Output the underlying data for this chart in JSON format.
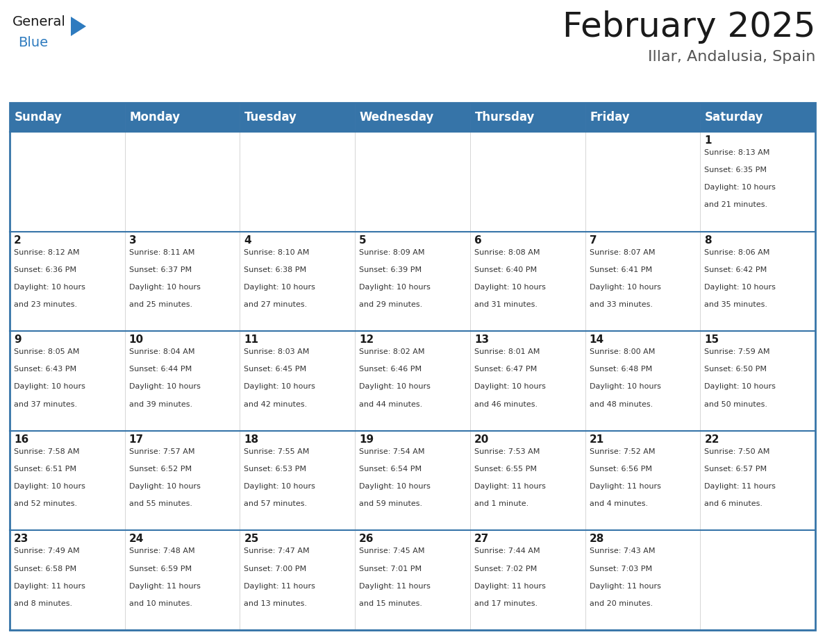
{
  "title": "February 2025",
  "subtitle": "Illar, Andalusia, Spain",
  "header_bg": "#3674a8",
  "header_text": "#ffffff",
  "cell_bg_white": "#ffffff",
  "border_color": "#3674a8",
  "grid_line_color": "#aaaaaa",
  "day_headers": [
    "Sunday",
    "Monday",
    "Tuesday",
    "Wednesday",
    "Thursday",
    "Friday",
    "Saturday"
  ],
  "weeks": [
    [
      {
        "day": "",
        "info": ""
      },
      {
        "day": "",
        "info": ""
      },
      {
        "day": "",
        "info": ""
      },
      {
        "day": "",
        "info": ""
      },
      {
        "day": "",
        "info": ""
      },
      {
        "day": "",
        "info": ""
      },
      {
        "day": "1",
        "info": "Sunrise: 8:13 AM\nSunset: 6:35 PM\nDaylight: 10 hours\nand 21 minutes."
      }
    ],
    [
      {
        "day": "2",
        "info": "Sunrise: 8:12 AM\nSunset: 6:36 PM\nDaylight: 10 hours\nand 23 minutes."
      },
      {
        "day": "3",
        "info": "Sunrise: 8:11 AM\nSunset: 6:37 PM\nDaylight: 10 hours\nand 25 minutes."
      },
      {
        "day": "4",
        "info": "Sunrise: 8:10 AM\nSunset: 6:38 PM\nDaylight: 10 hours\nand 27 minutes."
      },
      {
        "day": "5",
        "info": "Sunrise: 8:09 AM\nSunset: 6:39 PM\nDaylight: 10 hours\nand 29 minutes."
      },
      {
        "day": "6",
        "info": "Sunrise: 8:08 AM\nSunset: 6:40 PM\nDaylight: 10 hours\nand 31 minutes."
      },
      {
        "day": "7",
        "info": "Sunrise: 8:07 AM\nSunset: 6:41 PM\nDaylight: 10 hours\nand 33 minutes."
      },
      {
        "day": "8",
        "info": "Sunrise: 8:06 AM\nSunset: 6:42 PM\nDaylight: 10 hours\nand 35 minutes."
      }
    ],
    [
      {
        "day": "9",
        "info": "Sunrise: 8:05 AM\nSunset: 6:43 PM\nDaylight: 10 hours\nand 37 minutes."
      },
      {
        "day": "10",
        "info": "Sunrise: 8:04 AM\nSunset: 6:44 PM\nDaylight: 10 hours\nand 39 minutes."
      },
      {
        "day": "11",
        "info": "Sunrise: 8:03 AM\nSunset: 6:45 PM\nDaylight: 10 hours\nand 42 minutes."
      },
      {
        "day": "12",
        "info": "Sunrise: 8:02 AM\nSunset: 6:46 PM\nDaylight: 10 hours\nand 44 minutes."
      },
      {
        "day": "13",
        "info": "Sunrise: 8:01 AM\nSunset: 6:47 PM\nDaylight: 10 hours\nand 46 minutes."
      },
      {
        "day": "14",
        "info": "Sunrise: 8:00 AM\nSunset: 6:48 PM\nDaylight: 10 hours\nand 48 minutes."
      },
      {
        "day": "15",
        "info": "Sunrise: 7:59 AM\nSunset: 6:50 PM\nDaylight: 10 hours\nand 50 minutes."
      }
    ],
    [
      {
        "day": "16",
        "info": "Sunrise: 7:58 AM\nSunset: 6:51 PM\nDaylight: 10 hours\nand 52 minutes."
      },
      {
        "day": "17",
        "info": "Sunrise: 7:57 AM\nSunset: 6:52 PM\nDaylight: 10 hours\nand 55 minutes."
      },
      {
        "day": "18",
        "info": "Sunrise: 7:55 AM\nSunset: 6:53 PM\nDaylight: 10 hours\nand 57 minutes."
      },
      {
        "day": "19",
        "info": "Sunrise: 7:54 AM\nSunset: 6:54 PM\nDaylight: 10 hours\nand 59 minutes."
      },
      {
        "day": "20",
        "info": "Sunrise: 7:53 AM\nSunset: 6:55 PM\nDaylight: 11 hours\nand 1 minute."
      },
      {
        "day": "21",
        "info": "Sunrise: 7:52 AM\nSunset: 6:56 PM\nDaylight: 11 hours\nand 4 minutes."
      },
      {
        "day": "22",
        "info": "Sunrise: 7:50 AM\nSunset: 6:57 PM\nDaylight: 11 hours\nand 6 minutes."
      }
    ],
    [
      {
        "day": "23",
        "info": "Sunrise: 7:49 AM\nSunset: 6:58 PM\nDaylight: 11 hours\nand 8 minutes."
      },
      {
        "day": "24",
        "info": "Sunrise: 7:48 AM\nSunset: 6:59 PM\nDaylight: 11 hours\nand 10 minutes."
      },
      {
        "day": "25",
        "info": "Sunrise: 7:47 AM\nSunset: 7:00 PM\nDaylight: 11 hours\nand 13 minutes."
      },
      {
        "day": "26",
        "info": "Sunrise: 7:45 AM\nSunset: 7:01 PM\nDaylight: 11 hours\nand 15 minutes."
      },
      {
        "day": "27",
        "info": "Sunrise: 7:44 AM\nSunset: 7:02 PM\nDaylight: 11 hours\nand 17 minutes."
      },
      {
        "day": "28",
        "info": "Sunrise: 7:43 AM\nSunset: 7:03 PM\nDaylight: 11 hours\nand 20 minutes."
      },
      {
        "day": "",
        "info": ""
      }
    ]
  ],
  "title_fontsize": 36,
  "subtitle_fontsize": 16,
  "header_fontsize": 12,
  "day_num_fontsize": 11,
  "info_fontsize": 8,
  "logo_general_color": "#1a1a1a",
  "logo_blue_color": "#2e7bbf",
  "logo_triangle_color": "#2e7bbf"
}
